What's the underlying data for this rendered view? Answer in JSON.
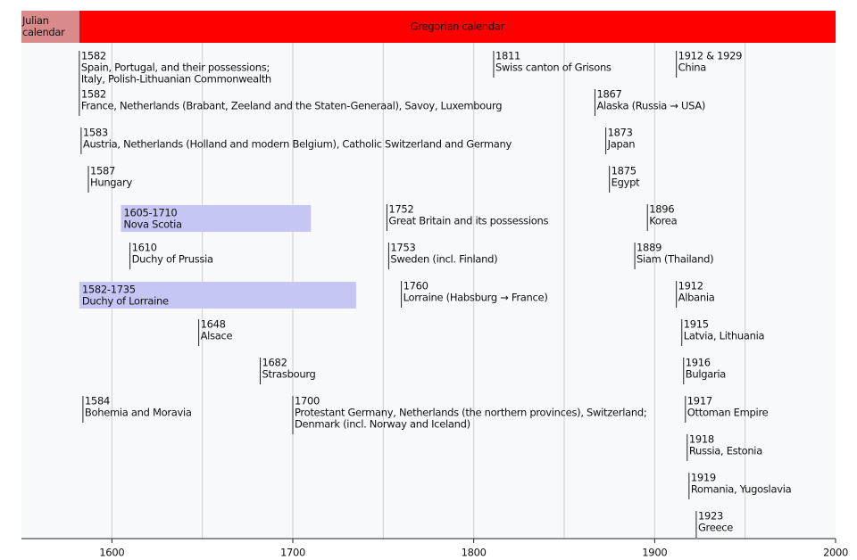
{
  "chart_data": {
    "type": "timeline",
    "xlim": [
      1550,
      2000
    ],
    "xticks": [
      1600,
      1700,
      1800,
      1900,
      2000
    ],
    "gridlines": [
      1600,
      1650,
      1700,
      1750,
      1800,
      1850,
      1900,
      1950
    ],
    "range_color": "#c6c6f5",
    "eras": [
      {
        "lines": [
          "Julian",
          "calendar"
        ],
        "end": 1582,
        "color": "#d98b8b"
      },
      {
        "lines": [
          "Gregorian calendar"
        ],
        "start": 1582,
        "color": "#ff0000"
      }
    ],
    "rows": [
      [
        {
          "year": 1582,
          "lines": [
            "Spain, Portugal, and their possessions;",
            "Italy, Polish-Lithuanian Commonwealth"
          ]
        },
        {
          "year": 1811,
          "lines": [
            "Swiss canton of Grisons"
          ]
        },
        {
          "year": {
            "value": 1912,
            "label": "1912 & 1929"
          },
          "lines": [
            "China"
          ]
        }
      ],
      [
        {
          "year": 1582,
          "lines": [
            "France, Netherlands (Brabant, Zeeland and the Staten-Generaal), Savoy, Luxembourg"
          ]
        },
        {
          "year": 1867,
          "lines": [
            "Alaska (Russia → USA)"
          ]
        }
      ],
      [
        {
          "year": 1583,
          "lines": [
            "Austria, Netherlands (Holland and modern Belgium), Catholic Switzerland and Germany"
          ]
        },
        {
          "year": 1873,
          "lines": [
            "Japan"
          ]
        }
      ],
      [
        {
          "year": 1587,
          "lines": [
            "Hungary"
          ]
        },
        {
          "year": 1875,
          "lines": [
            "Egypt"
          ]
        }
      ],
      [
        {
          "start": 1605,
          "end": 1710,
          "label": "1605-1710",
          "lines": [
            "Nova Scotia"
          ]
        },
        {
          "year": 1752,
          "lines": [
            "Great Britain and its possessions"
          ]
        },
        {
          "year": 1896,
          "lines": [
            "Korea"
          ]
        }
      ],
      [
        {
          "year": 1610,
          "lines": [
            "Duchy of Prussia"
          ]
        },
        {
          "year": 1753,
          "lines": [
            "Sweden (incl. Finland)"
          ]
        },
        {
          "year": 1889,
          "lines": [
            "Siam (Thailand)"
          ]
        }
      ],
      [
        {
          "start": 1582,
          "end": 1735,
          "label": "1582-1735",
          "lines": [
            "Duchy of Lorraine"
          ]
        },
        {
          "year": 1760,
          "lines": [
            "Lorraine (Habsburg → France)"
          ]
        },
        {
          "year": 1912,
          "lines": [
            "Albania"
          ]
        }
      ],
      [
        {
          "year": 1648,
          "lines": [
            "Alsace"
          ]
        },
        {
          "year": 1915,
          "lines": [
            "Latvia, Lithuania"
          ]
        }
      ],
      [
        {
          "year": 1682,
          "lines": [
            "Strasbourg"
          ]
        },
        {
          "year": 1916,
          "lines": [
            "Bulgaria"
          ]
        }
      ],
      [
        {
          "year": 1584,
          "lines": [
            "Bohemia and Moravia"
          ]
        },
        {
          "year": 1700,
          "lines": [
            "Protestant Germany, Netherlands (the northern provinces), Switzerland;",
            "Denmark (incl. Norway and Iceland)"
          ]
        },
        {
          "year": 1917,
          "lines": [
            "Ottoman Empire"
          ]
        }
      ],
      [
        {
          "year": 1918,
          "lines": [
            "Russia, Estonia"
          ]
        }
      ],
      [
        {
          "year": 1919,
          "lines": [
            "Romania, Yugoslavia"
          ]
        }
      ],
      [
        {
          "year": 1923,
          "lines": [
            "Greece"
          ]
        }
      ]
    ]
  }
}
